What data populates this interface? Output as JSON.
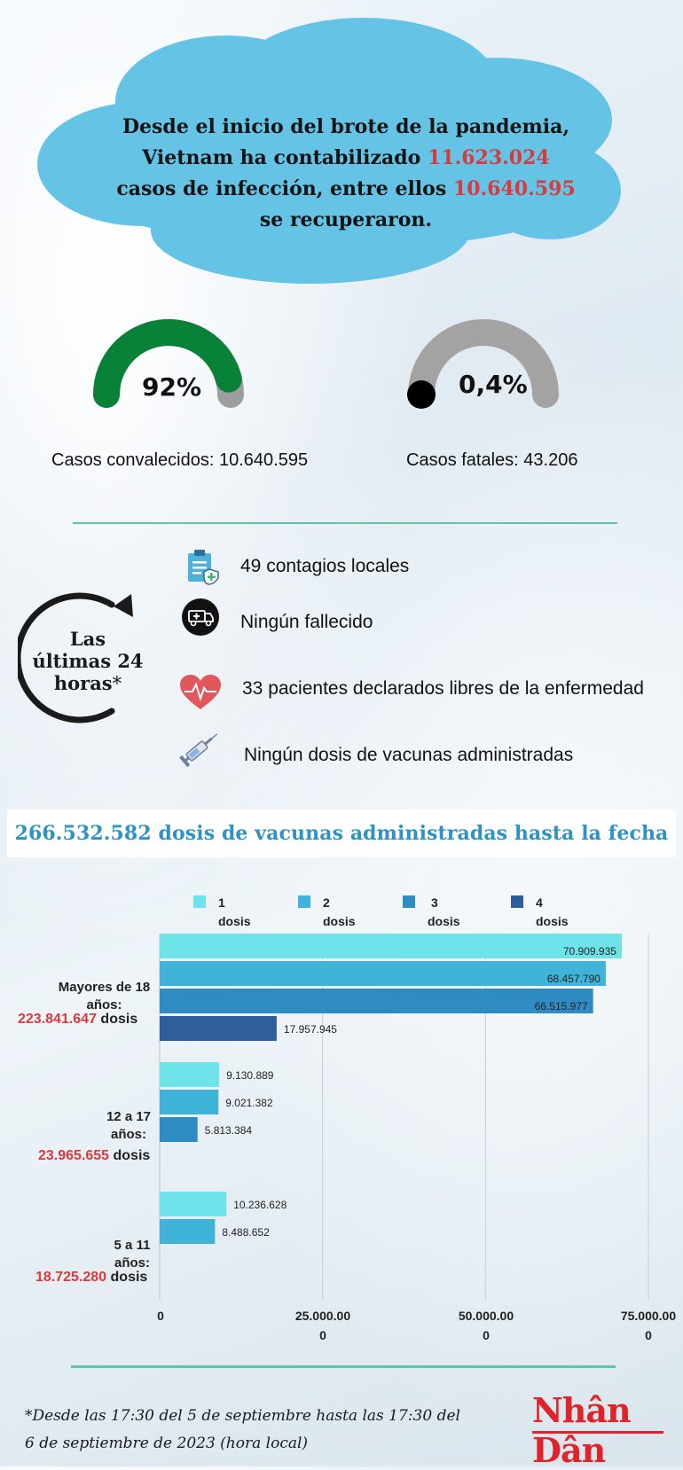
{
  "header": {
    "line1": "Desde el inicio del brote de la pandemia,",
    "line2_pre": "Vietnam ha contabilizado ",
    "total_cases": "11.623.024",
    "line3_pre": "casos de infección, entre ellos ",
    "recovered": "10.640.595",
    "line4": "se recuperaron."
  },
  "gauges": {
    "recovered": {
      "value": "92%",
      "fraction": 0.92,
      "label": "Casos convalecidos: 10.640.595",
      "color": "#0a8139"
    },
    "fatal": {
      "value": "0,4%",
      "fraction": 0.004,
      "label": "Casos fatales: 43.206",
      "color": "#000000"
    }
  },
  "last24": {
    "title_line1": "Las",
    "title_line2": "últimas 24",
    "title_line3": "horas",
    "asterisk": "*",
    "items": [
      {
        "icon": "clipboard-icon",
        "text": "49 contagios locales"
      },
      {
        "icon": "ambulance-icon",
        "text": "Ningún fallecido"
      },
      {
        "icon": "heart-pulse-icon",
        "text": "33 pacientes declarados libres de la enfermedad"
      },
      {
        "icon": "syringe-icon",
        "text": "Ningún dosis de vacunas administradas"
      }
    ]
  },
  "banner": "266.532.582 dosis de vacunas administradas hasta la fecha",
  "chart_data": {
    "type": "bar",
    "orientation": "horizontal",
    "legend": [
      {
        "line1": "1",
        "line2": "dosis",
        "color": "#6fe3ea"
      },
      {
        "line1": "2",
        "line2": "dosis",
        "color": "#3fb4d8"
      },
      {
        "line1": "3",
        "line2": "dosis",
        "color": "#2f8cc2"
      },
      {
        "line1": "4",
        "line2": "dosis",
        "color": "#2f5f9a"
      }
    ],
    "groups": [
      {
        "label_line1": "Mayores de 18",
        "label_line2": "años:",
        "total": "223.841.647",
        "total_suffix": " dosis",
        "values": [
          70909935,
          68457790,
          66515977,
          17957945
        ],
        "labels": [
          "70.909.935",
          "68.457.790",
          "66.515.977",
          "17.957.945"
        ]
      },
      {
        "label_line1": "12 a 17",
        "label_line2": "años:",
        "total": "23.965.655",
        "total_suffix": " dosis",
        "values": [
          9130889,
          9021382,
          5813384
        ],
        "labels": [
          "9.130.889",
          "9.021.382",
          "5.813.384"
        ]
      },
      {
        "label_line1": "5 a 11",
        "label_line2": "años:",
        "total": "18.725.280",
        "total_suffix": " dosis",
        "values": [
          10236628,
          8488652
        ],
        "labels": [
          "10.236.628",
          "8.488.652"
        ]
      }
    ],
    "xlim": [
      0,
      75000000
    ],
    "xticks": [
      {
        "line1": "0",
        "line2": ""
      },
      {
        "line1": "25.000.00",
        "line2": "0"
      },
      {
        "line1": "50.000.00",
        "line2": "0"
      },
      {
        "line1": "75.000.00",
        "line2": "0"
      }
    ],
    "grid": true
  },
  "footnote": "*Desde las 17:30 del 5 de septiembre hasta las 17:30 del 6 de septiembre de 2023 (hora local)",
  "logo": "Nhân Dân"
}
